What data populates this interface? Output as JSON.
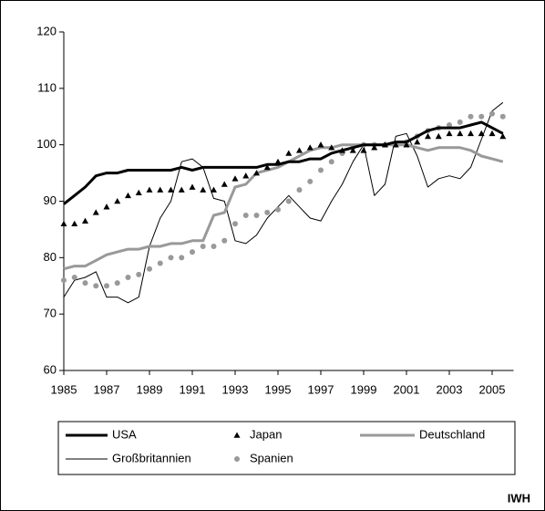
{
  "chart_data": {
    "type": "line",
    "x": [
      1985,
      1985.5,
      1986,
      1986.5,
      1987,
      1987.5,
      1988,
      1988.5,
      1989,
      1989.5,
      1990,
      1990.5,
      1991,
      1991.5,
      1992,
      1992.5,
      1993,
      1993.5,
      1994,
      1994.5,
      1995,
      1995.5,
      1996,
      1996.5,
      1997,
      1997.5,
      1998,
      1998.5,
      1999,
      1999.5,
      2000,
      2000.5,
      2001,
      2001.5,
      2002,
      2002.5,
      2003,
      2003.5,
      2004,
      2004.5,
      2005,
      2005.5
    ],
    "xlim": [
      1985,
      2006
    ],
    "xticks": [
      1985,
      1987,
      1989,
      1991,
      1993,
      1995,
      1997,
      1999,
      2001,
      2003,
      2005
    ],
    "ylim": [
      60,
      120
    ],
    "yticks": [
      60,
      70,
      80,
      90,
      100,
      110,
      120
    ],
    "grid": false,
    "source": "IWH",
    "series": [
      {
        "name": "USA",
        "color": "#000000",
        "style": "line",
        "width": 3,
        "values": [
          89.5,
          91,
          92.5,
          94.5,
          95,
          95,
          95.5,
          95.5,
          95.5,
          95.5,
          95.5,
          96,
          95.5,
          96,
          96,
          96,
          96,
          96,
          96,
          96.5,
          96.5,
          97,
          97,
          97.5,
          97.5,
          98.5,
          99,
          99.5,
          100,
          100,
          100,
          100.5,
          100.5,
          101.5,
          102.5,
          103,
          103,
          103,
          103.5,
          104,
          103,
          102
        ]
      },
      {
        "name": "Japan",
        "color": "#000000",
        "style": "triangle",
        "values": [
          86,
          86,
          86.5,
          88,
          89,
          90,
          91,
          91.5,
          92,
          92,
          92,
          92,
          92.5,
          92,
          92,
          93,
          94,
          94.5,
          95,
          96,
          97,
          98.5,
          99,
          99.5,
          100,
          99.5,
          99,
          99,
          99,
          99.5,
          100,
          100,
          100,
          100.5,
          101.5,
          101.5,
          102,
          102,
          102,
          102,
          102,
          101.5
        ]
      },
      {
        "name": "Deutschland",
        "color": "#999999",
        "style": "line",
        "width": 3,
        "values": [
          78,
          78.5,
          78.5,
          79.5,
          80.5,
          81,
          81.5,
          81.5,
          82,
          82,
          82.5,
          82.5,
          83,
          83,
          87.5,
          88,
          92.5,
          93,
          95,
          95.5,
          96,
          97,
          98,
          99,
          99.5,
          99.5,
          100,
          100,
          100,
          100,
          100,
          100,
          100,
          99.5,
          99,
          99.5,
          99.5,
          99.5,
          99,
          98,
          97.5,
          97
        ]
      },
      {
        "name": "Großbritannien",
        "color": "#000000",
        "style": "line",
        "width": 1,
        "values": [
          73,
          76,
          76.5,
          77.5,
          73,
          73,
          72,
          73,
          82,
          87,
          90,
          97,
          97.5,
          96,
          90.5,
          90,
          83,
          82.5,
          84,
          87,
          89,
          91,
          89,
          87,
          86.5,
          90,
          93,
          97,
          100,
          91,
          93,
          101.5,
          102,
          98,
          92.5,
          94,
          94.5,
          94,
          96,
          101,
          106,
          107.5
        ]
      },
      {
        "name": "Spanien",
        "color": "#999999",
        "style": "dot",
        "values": [
          76,
          76.5,
          75.5,
          75,
          75,
          75.5,
          76.5,
          77,
          78,
          79,
          80,
          80,
          81,
          82,
          82,
          83,
          86,
          87.5,
          87.5,
          88,
          88.5,
          90,
          92,
          93.5,
          95.5,
          97,
          98.5,
          99.5,
          100,
          100,
          100,
          100,
          100.5,
          101.5,
          102.5,
          103,
          103.5,
          104,
          105,
          105,
          105.5,
          105
        ]
      }
    ]
  }
}
